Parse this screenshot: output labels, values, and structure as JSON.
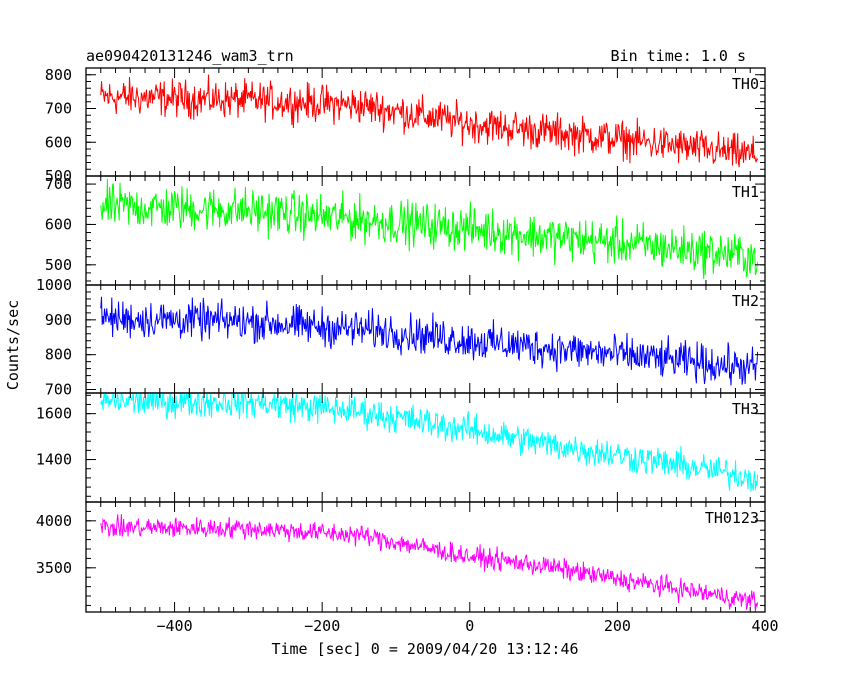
{
  "header": {
    "left_title": "ae090420131246_wam3_trn",
    "right_title": "Bin time: 1.0 s"
  },
  "chart_data": {
    "type": "line",
    "xlabel": "Time [sec] 0 = 2009/04/20 13:12:46",
    "ylabel": "Counts/sec",
    "xlim": [
      -520,
      400
    ],
    "data_xrange": [
      -500,
      390
    ],
    "x_ticks": [
      -400,
      -200,
      0,
      200,
      400
    ],
    "x_tick_labels": [
      "−400",
      "−200",
      "0",
      "200",
      "400"
    ],
    "grid": false,
    "panels": [
      {
        "name": "TH0",
        "color": "#ff0000",
        "ylim": [
          500,
          820
        ],
        "y_ticks": [
          500,
          600,
          700,
          800
        ],
        "y_tick_labels": [
          "500",
          "600",
          "700",
          "800"
        ],
        "trend": [
          [
            -500,
            735
          ],
          [
            -300,
            725
          ],
          [
            -150,
            710
          ],
          [
            0,
            655
          ],
          [
            200,
            610
          ],
          [
            390,
            560
          ]
        ],
        "noise_amplitude": 45
      },
      {
        "name": "TH1",
        "color": "#00ff00",
        "ylim": [
          450,
          720
        ],
        "y_ticks": [
          500,
          600,
          700
        ],
        "y_tick_labels": [
          "500",
          "600",
          "700"
        ],
        "trend": [
          [
            -500,
            645
          ],
          [
            -300,
            635
          ],
          [
            -100,
            605
          ],
          [
            0,
            590
          ],
          [
            100,
            570
          ],
          [
            200,
            555
          ],
          [
            390,
            520
          ]
        ],
        "noise_amplitude": 45
      },
      {
        "name": "TH2",
        "color": "#0000ff",
        "ylim": [
          690,
          1000
        ],
        "y_ticks": [
          700,
          800,
          900,
          1000
        ],
        "y_tick_labels": [
          "700",
          "800",
          "900",
          "1000"
        ],
        "trend": [
          [
            -500,
            905
          ],
          [
            -300,
            895
          ],
          [
            -100,
            865
          ],
          [
            0,
            840
          ],
          [
            100,
            820
          ],
          [
            200,
            800
          ],
          [
            390,
            760
          ]
        ],
        "noise_amplitude": 45
      },
      {
        "name": "TH3",
        "color": "#00ffff",
        "ylim": [
          1215,
          1690
        ],
        "y_ticks": [
          1400,
          1600
        ],
        "y_tick_labels": [
          "1400",
          "1600"
        ],
        "trend": [
          [
            -500,
            1655
          ],
          [
            -300,
            1650
          ],
          [
            -150,
            1610
          ],
          [
            0,
            1530
          ],
          [
            100,
            1470
          ],
          [
            200,
            1420
          ],
          [
            390,
            1320
          ]
        ],
        "noise_amplitude": 55
      },
      {
        "name": "TH0123",
        "color": "#ff00ff",
        "ylim": [
          3030,
          4200
        ],
        "y_ticks": [
          3500,
          4000
        ],
        "y_tick_labels": [
          "3500",
          "4000"
        ],
        "trend": [
          [
            -500,
            3930
          ],
          [
            -300,
            3920
          ],
          [
            -150,
            3850
          ],
          [
            0,
            3620
          ],
          [
            100,
            3520
          ],
          [
            200,
            3380
          ],
          [
            390,
            3140
          ]
        ],
        "noise_amplitude": 90
      }
    ]
  }
}
